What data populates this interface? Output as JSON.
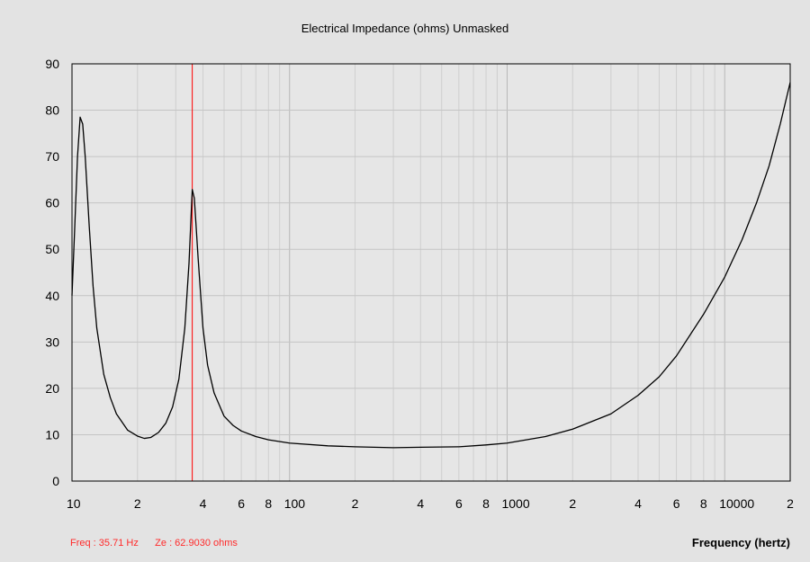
{
  "chart_data": {
    "type": "line",
    "title": "Electrical Impedance (ohms)   Unmasked",
    "xlabel": "Frequency (hertz)",
    "ylabel": "",
    "x_scale": "log",
    "xlim": [
      10,
      20000
    ],
    "ylim": [
      0,
      90
    ],
    "grid": true,
    "y_ticks": [
      "0",
      "10",
      "20",
      "30",
      "40",
      "50",
      "60",
      "70",
      "80",
      "90"
    ],
    "x_ticks": [
      {
        "value": 10,
        "label": "10"
      },
      {
        "value": 20,
        "label": "2"
      },
      {
        "value": 40,
        "label": "4"
      },
      {
        "value": 60,
        "label": "6"
      },
      {
        "value": 80,
        "label": "8"
      },
      {
        "value": 100,
        "label": "100"
      },
      {
        "value": 200,
        "label": "2"
      },
      {
        "value": 400,
        "label": "4"
      },
      {
        "value": 600,
        "label": "6"
      },
      {
        "value": 800,
        "label": "8"
      },
      {
        "value": 1000,
        "label": "1000"
      },
      {
        "value": 2000,
        "label": "2"
      },
      {
        "value": 4000,
        "label": "4"
      },
      {
        "value": 6000,
        "label": "6"
      },
      {
        "value": 8000,
        "label": "8"
      },
      {
        "value": 10000,
        "label": "10000"
      },
      {
        "value": 20000,
        "label": "2"
      }
    ],
    "series": [
      {
        "color": "#000000",
        "points": [
          [
            10,
            40
          ],
          [
            10.3,
            55
          ],
          [
            10.6,
            70
          ],
          [
            10.9,
            78.5
          ],
          [
            11.2,
            77
          ],
          [
            11.5,
            70
          ],
          [
            12,
            55
          ],
          [
            12.5,
            42
          ],
          [
            13,
            33
          ],
          [
            14,
            23
          ],
          [
            15,
            18
          ],
          [
            16,
            14.5
          ],
          [
            18,
            11
          ],
          [
            20,
            9.7
          ],
          [
            21.5,
            9.2
          ],
          [
            23,
            9.4
          ],
          [
            25,
            10.5
          ],
          [
            27,
            12.5
          ],
          [
            29,
            16
          ],
          [
            31,
            22
          ],
          [
            33,
            33
          ],
          [
            34.5,
            47
          ],
          [
            35.71,
            62.9
          ],
          [
            36.5,
            61
          ],
          [
            38,
            48
          ],
          [
            40,
            33
          ],
          [
            42,
            25
          ],
          [
            45,
            19
          ],
          [
            50,
            14
          ],
          [
            55,
            12
          ],
          [
            60,
            10.8
          ],
          [
            70,
            9.6
          ],
          [
            80,
            8.9
          ],
          [
            100,
            8.2
          ],
          [
            150,
            7.6
          ],
          [
            200,
            7.4
          ],
          [
            300,
            7.2
          ],
          [
            400,
            7.3
          ],
          [
            600,
            7.4
          ],
          [
            800,
            7.8
          ],
          [
            1000,
            8.2
          ],
          [
            1500,
            9.6
          ],
          [
            2000,
            11.2
          ],
          [
            3000,
            14.5
          ],
          [
            4000,
            18.5
          ],
          [
            5000,
            22.5
          ],
          [
            6000,
            27
          ],
          [
            8000,
            36
          ],
          [
            10000,
            44
          ],
          [
            12000,
            52
          ],
          [
            14000,
            60
          ],
          [
            16000,
            68
          ],
          [
            18000,
            77
          ],
          [
            20000,
            86
          ]
        ]
      }
    ],
    "marker": {
      "x": 35.71,
      "color": "#ff0000"
    }
  },
  "readout": {
    "freq": "Freq : 35.71 Hz",
    "ze": "Ze : 62.9030 ohms",
    "color": "#ff2a2a"
  }
}
